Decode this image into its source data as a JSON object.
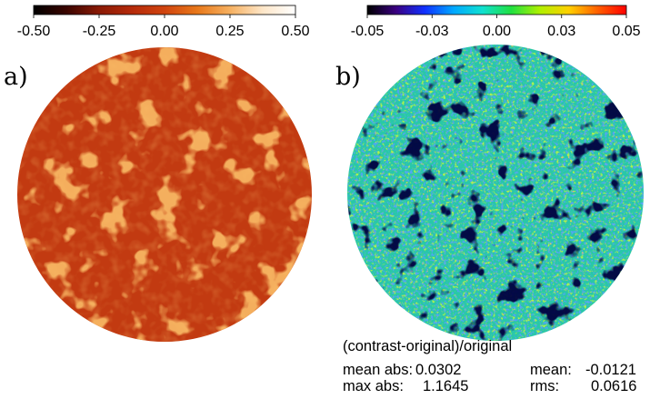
{
  "panels": [
    {
      "label": "a)",
      "colorbar": {
        "ticks": [
          "-0.50",
          "-0.25",
          "0.00",
          "0.25",
          "0.50"
        ],
        "colormap": "heat",
        "stops": [
          "#000000",
          "#3a0500",
          "#8a1a05",
          "#b52a0a",
          "#d0440f",
          "#e8781a",
          "#f6b060",
          "#fde6c8",
          "#ffffff"
        ]
      },
      "disk": {
        "base_color": "#c23a11",
        "style": "heat-map solar disk, mostly uniform red-orange with brighter orange active-region patches"
      }
    },
    {
      "label": "b)",
      "colorbar": {
        "ticks": [
          "-0.05",
          "-0.03",
          "0.00",
          "0.03",
          "0.05"
        ],
        "colormap": "rainbow",
        "stops": [
          "#000000",
          "#3a0080",
          "#1030ff",
          "#00a8ff",
          "#10e0d0",
          "#20e040",
          "#b0f000",
          "#ffd000",
          "#ff6000",
          "#ff0000"
        ]
      },
      "disk": {
        "base_color": "#28c8a8",
        "style": "noisy rainbow map, cyan/green dominant with dark blue-black patches"
      }
    }
  ],
  "stats": {
    "title": "(contrast-original)/original",
    "mean_abs_label": "mean abs:",
    "mean_abs_value": "0.0302",
    "mean_label": "mean:",
    "mean_value": "-0.0121",
    "max_abs_label": "max abs:",
    "max_abs_value": "1.1645",
    "rms_label": "rms:",
    "rms_value": "0.0616"
  }
}
